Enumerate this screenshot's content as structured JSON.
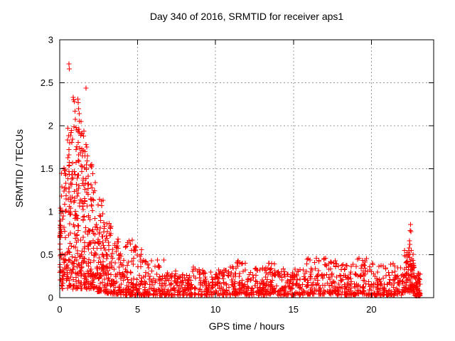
{
  "window": {
    "background": "#ffffff"
  },
  "chart_data": {
    "type": "scatter",
    "title": "Day 340 of 2016, SRMTID for receiver aps1",
    "xlabel": "GPS time / hours",
    "ylabel": "SRMTID / TECUs",
    "xlim": [
      0,
      24
    ],
    "ylim": [
      0,
      3
    ],
    "xtick_values": [
      0,
      5,
      10,
      15,
      20
    ],
    "xtick_labels": [
      "0",
      "5",
      "10",
      "15",
      "20"
    ],
    "ytick_values": [
      0,
      0.5,
      1,
      1.5,
      2,
      2.5,
      3
    ],
    "ytick_labels": [
      "0",
      "0.5",
      "1",
      "1.5",
      "2",
      "2.5",
      "3"
    ],
    "grid": "dotted-at-major-ticks",
    "legend": "none",
    "marker": "plus",
    "marker_color": "#ff0000",
    "grid_color": "#999999",
    "border_color": "#000000",
    "seed": 340,
    "pattern_summary": "Dense burst of high SRMTID 0-4h (max ~2.7 TECUs near 0.6h, cluster ~2.3 near 1h), decaying to a low noise band ~0.05-0.35 TECUs from 5h to 22h with small bumps (~0.4-0.47) near 5.7, 11.7, 13.7, 16.5, 17.5, 19.3h, then a sharp spike to ~0.85 at ~22.5h and data ending ~23.1h near 0.1",
    "density_segments": [
      {
        "x0": 0.0,
        "x1": 0.1,
        "n": 28,
        "ymin": 0.18,
        "ymax": 1.05,
        "bias": 1.2
      },
      {
        "x0": 0.1,
        "x1": 0.5,
        "n": 55,
        "ymin": 0.1,
        "ymax": 1.55,
        "bias": 1.5
      },
      {
        "x0": 0.5,
        "x1": 0.8,
        "n": 60,
        "ymin": 0.12,
        "ymax": 2.05,
        "bias": 1.6
      },
      {
        "x0": 0.8,
        "x1": 1.3,
        "n": 95,
        "ymin": 0.1,
        "ymax": 2.1,
        "bias": 1.5
      },
      {
        "x0": 1.3,
        "x1": 1.8,
        "n": 95,
        "ymin": 0.1,
        "ymax": 1.95,
        "bias": 1.5
      },
      {
        "x0": 1.8,
        "x1": 2.3,
        "n": 85,
        "ymin": 0.1,
        "ymax": 1.55,
        "bias": 1.5
      },
      {
        "x0": 2.3,
        "x1": 2.8,
        "n": 75,
        "ymin": 0.07,
        "ymax": 1.15,
        "bias": 1.5
      },
      {
        "x0": 2.8,
        "x1": 3.3,
        "n": 70,
        "ymin": 0.05,
        "ymax": 0.88,
        "bias": 1.7
      },
      {
        "x0": 3.3,
        "x1": 3.9,
        "n": 65,
        "ymin": 0.04,
        "ymax": 0.7,
        "bias": 1.8
      },
      {
        "x0": 3.9,
        "x1": 4.7,
        "n": 70,
        "ymin": 0.03,
        "ymax": 0.68,
        "bias": 2.0
      },
      {
        "x0": 4.7,
        "x1": 5.3,
        "n": 55,
        "ymin": 0.03,
        "ymax": 0.6,
        "bias": 2.2
      },
      {
        "x0": 5.3,
        "x1": 6.2,
        "n": 60,
        "ymin": 0.03,
        "ymax": 0.46,
        "bias": 2.2
      },
      {
        "x0": 6.2,
        "x1": 6.8,
        "n": 45,
        "ymin": 0.03,
        "ymax": 0.45,
        "bias": 2.2
      },
      {
        "x0": 6.8,
        "x1": 8.2,
        "n": 90,
        "ymin": 0.03,
        "ymax": 0.32,
        "bias": 2.0
      },
      {
        "x0": 8.2,
        "x1": 9.0,
        "n": 55,
        "ymin": 0.03,
        "ymax": 0.36,
        "bias": 2.1
      },
      {
        "x0": 9.0,
        "x1": 10.5,
        "n": 100,
        "ymin": 0.03,
        "ymax": 0.33,
        "bias": 2.0
      },
      {
        "x0": 10.5,
        "x1": 11.3,
        "n": 55,
        "ymin": 0.03,
        "ymax": 0.36,
        "bias": 2.0
      },
      {
        "x0": 11.3,
        "x1": 12.0,
        "n": 50,
        "ymin": 0.04,
        "ymax": 0.43,
        "bias": 1.9
      },
      {
        "x0": 12.0,
        "x1": 13.3,
        "n": 90,
        "ymin": 0.03,
        "ymax": 0.36,
        "bias": 2.0
      },
      {
        "x0": 13.3,
        "x1": 14.0,
        "n": 50,
        "ymin": 0.04,
        "ymax": 0.42,
        "bias": 1.9
      },
      {
        "x0": 14.0,
        "x1": 15.8,
        "n": 120,
        "ymin": 0.03,
        "ymax": 0.34,
        "bias": 2.0
      },
      {
        "x0": 15.8,
        "x1": 16.8,
        "n": 70,
        "ymin": 0.04,
        "ymax": 0.46,
        "bias": 1.9
      },
      {
        "x0": 16.8,
        "x1": 17.8,
        "n": 70,
        "ymin": 0.04,
        "ymax": 0.46,
        "bias": 1.9
      },
      {
        "x0": 17.8,
        "x1": 19.0,
        "n": 85,
        "ymin": 0.03,
        "ymax": 0.4,
        "bias": 2.0
      },
      {
        "x0": 19.0,
        "x1": 19.7,
        "n": 50,
        "ymin": 0.04,
        "ymax": 0.47,
        "bias": 1.9
      },
      {
        "x0": 19.7,
        "x1": 21.4,
        "n": 115,
        "ymin": 0.03,
        "ymax": 0.4,
        "bias": 2.0
      },
      {
        "x0": 21.4,
        "x1": 22.1,
        "n": 50,
        "ymin": 0.03,
        "ymax": 0.37,
        "bias": 2.0
      },
      {
        "x0": 22.1,
        "x1": 22.45,
        "n": 40,
        "ymin": 0.05,
        "ymax": 0.55,
        "bias": 1.6
      },
      {
        "x0": 22.45,
        "x1": 22.75,
        "n": 45,
        "ymin": 0.05,
        "ymax": 0.55,
        "bias": 1.4
      },
      {
        "x0": 22.75,
        "x1": 23.15,
        "n": 50,
        "ymin": 0.02,
        "ymax": 0.3,
        "bias": 1.8
      }
    ],
    "outlier_points": [
      [
        0.59,
        2.72
      ],
      [
        0.61,
        2.66
      ],
      [
        1.69,
        2.44
      ],
      [
        0.86,
        2.33
      ],
      [
        0.89,
        2.3
      ],
      [
        0.93,
        2.28
      ],
      [
        1.16,
        2.31
      ],
      [
        1.19,
        2.27
      ],
      [
        0.97,
        2.17
      ],
      [
        1.22,
        2.2
      ],
      [
        1.25,
        2.14
      ],
      [
        1.38,
        2.05
      ],
      [
        0.53,
        1.97
      ],
      [
        0.72,
        1.92
      ],
      [
        1.05,
        1.98
      ],
      [
        1.52,
        1.88
      ],
      [
        1.62,
        1.7
      ],
      [
        2.05,
        1.55
      ],
      [
        0.3,
        1.48
      ],
      [
        22.52,
        0.85
      ],
      [
        22.49,
        0.78
      ],
      [
        22.53,
        0.77
      ],
      [
        22.45,
        0.66
      ],
      [
        22.48,
        0.62
      ],
      [
        22.42,
        0.58
      ],
      [
        22.56,
        0.55
      ],
      [
        22.38,
        0.5
      ]
    ]
  }
}
